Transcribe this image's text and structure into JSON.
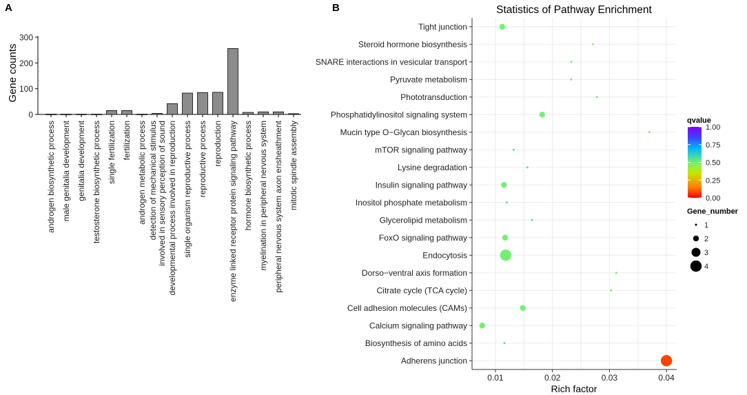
{
  "panels": {
    "a": "A",
    "b": "B"
  },
  "chart_data": [
    {
      "type": "bar",
      "ylabel": "Gene counts",
      "ylim": [
        0,
        300
      ],
      "yticks": [
        0,
        100,
        200,
        300
      ],
      "categories": [
        "androgen biosynthetic process",
        "male genitalia development",
        "genitalia development",
        "testosterone biosynthetic process",
        "single fertilization",
        "fertilization",
        "androgen metabolic process",
        [
          "detection of mechanical stimulus",
          "involved in sensory perception of sound"
        ],
        "developmental process involved in reproduction",
        "single organism reproductive process",
        "reproductive process",
        "reproduction",
        "enzyme linked receptor protein signaling pathway",
        "hormone biosynthetic process",
        "myelination in peripheral nervous system",
        "peripheral nervous system axon ensheathment",
        "mitotic spindle assembly"
      ],
      "values": [
        1,
        1,
        1,
        1,
        15,
        15,
        1,
        4,
        42,
        83,
        85,
        86,
        256,
        8,
        10,
        10,
        3
      ],
      "bar_color": "#8c8c8c"
    },
    {
      "type": "scatter",
      "title": "Statistics of Pathway Enrichment",
      "xlabel": "Rich factor",
      "xlim": [
        0.0059,
        0.0418
      ],
      "xticks": [
        0.01,
        0.02,
        0.03,
        0.04
      ],
      "xtick_labels": [
        "0.01",
        "0.02",
        "0.03",
        "0.04"
      ],
      "categories": [
        "Tight junction",
        "Steroid hormone biosynthesis",
        "SNARE interactions in vesicular transport",
        "Pyruvate metabolism",
        "Phototransduction",
        "Phosphatidylinositol signaling system",
        "Mucin type O−Glycan biosynthesis",
        "mTOR signaling pathway",
        "Lysine degradation",
        "Insulin signaling pathway",
        "Inositol phosphate metabolism",
        "Glycerolipid metabolism",
        "FoxO signaling pathway",
        "Endocytosis",
        "Dorso−ventral axis formation",
        "Citrate cycle (TCA cycle)",
        "Cell adhesion molecules (CAMs)",
        "Calcium signaling pathway",
        "Biosynthesis of amino acids",
        "Adherens junction"
      ],
      "points": [
        {
          "rich_factor": 0.0112,
          "gene_number": 2,
          "qvalue": 0.5
        },
        {
          "rich_factor": 0.0271,
          "gene_number": 1,
          "qvalue": 0.5
        },
        {
          "rich_factor": 0.0233,
          "gene_number": 1,
          "qvalue": 0.5
        },
        {
          "rich_factor": 0.0233,
          "gene_number": 1,
          "qvalue": 0.5
        },
        {
          "rich_factor": 0.0278,
          "gene_number": 1,
          "qvalue": 0.5
        },
        {
          "rich_factor": 0.0182,
          "gene_number": 2,
          "qvalue": 0.5
        },
        {
          "rich_factor": 0.037,
          "gene_number": 1,
          "qvalue": 0.5
        },
        {
          "rich_factor": 0.0132,
          "gene_number": 1,
          "qvalue": 0.55
        },
        {
          "rich_factor": 0.0156,
          "gene_number": 1,
          "qvalue": 0.55
        },
        {
          "rich_factor": 0.0115,
          "gene_number": 2,
          "qvalue": 0.5
        },
        {
          "rich_factor": 0.012,
          "gene_number": 1,
          "qvalue": 0.55
        },
        {
          "rich_factor": 0.0164,
          "gene_number": 1,
          "qvalue": 0.55
        },
        {
          "rich_factor": 0.0117,
          "gene_number": 2,
          "qvalue": 0.5
        },
        {
          "rich_factor": 0.0118,
          "gene_number": 4,
          "qvalue": 0.5
        },
        {
          "rich_factor": 0.0312,
          "gene_number": 1,
          "qvalue": 0.5
        },
        {
          "rich_factor": 0.0303,
          "gene_number": 1,
          "qvalue": 0.5
        },
        {
          "rich_factor": 0.0148,
          "gene_number": 2,
          "qvalue": 0.5
        },
        {
          "rich_factor": 0.0077,
          "gene_number": 2,
          "qvalue": 0.5
        },
        {
          "rich_factor": 0.0116,
          "gene_number": 1,
          "qvalue": 0.55
        },
        {
          "rich_factor": 0.04,
          "gene_number": 4,
          "qvalue": 0.08
        }
      ],
      "legend": {
        "color_title": "qvalue",
        "color_ticks": [
          1.0,
          0.75,
          0.5,
          0.25,
          0.0
        ],
        "color_tick_labels": [
          "1.00",
          "0.75",
          "0.50",
          "0.25",
          "0.00"
        ],
        "colors": [
          "#ff0000",
          "#ff8000",
          "#c8e600",
          "#73f073",
          "#00b4ff",
          "#4040ff",
          "#8000ff"
        ],
        "size_title": "Gene_number",
        "size_entries": [
          1,
          2,
          3,
          4
        ],
        "placement": "right"
      }
    }
  ]
}
